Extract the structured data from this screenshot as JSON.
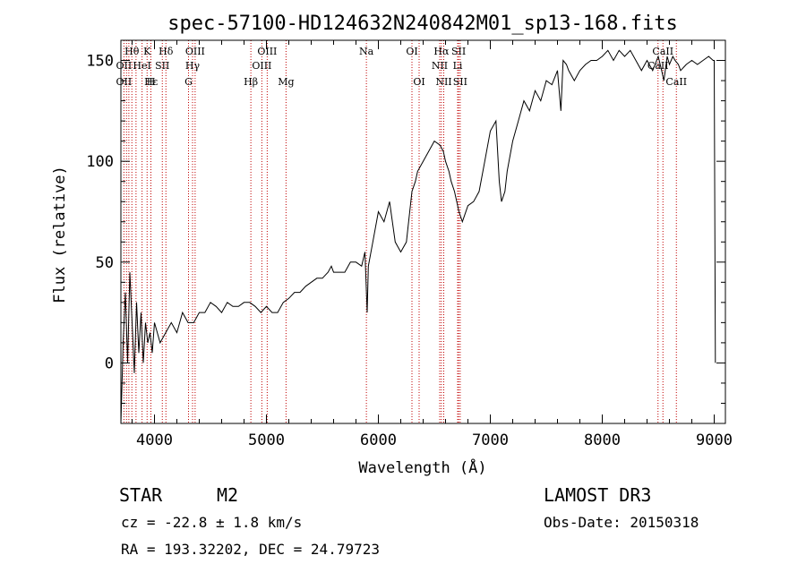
{
  "chart_data": {
    "type": "line",
    "title": "spec-57100-HD124632N240842M01_sp13-168.fits",
    "xlabel": "Wavelength (Å)",
    "ylabel": "Flux (relative)",
    "xlim": [
      3700,
      9100
    ],
    "ylim": [
      -30,
      160
    ],
    "xticks": [
      4000,
      5000,
      6000,
      7000,
      8000,
      9000
    ],
    "yticks": [
      0,
      50,
      100,
      150
    ],
    "series": [
      {
        "name": "flux",
        "x": [
          3700,
          3720,
          3740,
          3760,
          3780,
          3800,
          3820,
          3840,
          3860,
          3880,
          3900,
          3920,
          3940,
          3960,
          3980,
          4000,
          4050,
          4100,
          4150,
          4200,
          4250,
          4300,
          4350,
          4400,
          4450,
          4500,
          4550,
          4600,
          4650,
          4700,
          4750,
          4800,
          4850,
          4900,
          4950,
          5000,
          5050,
          5100,
          5150,
          5200,
          5250,
          5300,
          5350,
          5400,
          5450,
          5500,
          5550,
          5580,
          5600,
          5650,
          5700,
          5750,
          5800,
          5850,
          5880,
          5900,
          5910,
          5950,
          6000,
          6050,
          6100,
          6150,
          6200,
          6250,
          6280,
          6300,
          6330,
          6350,
          6400,
          6450,
          6500,
          6550,
          6580,
          6600,
          6630,
          6650,
          6680,
          6700,
          6720,
          6750,
          6800,
          6850,
          6900,
          6950,
          7000,
          7050,
          7080,
          7100,
          7130,
          7150,
          7200,
          7250,
          7300,
          7350,
          7400,
          7450,
          7500,
          7550,
          7600,
          7630,
          7650,
          7680,
          7700,
          7750,
          7800,
          7850,
          7900,
          7950,
          8000,
          8050,
          8100,
          8150,
          8200,
          8250,
          8300,
          8350,
          8400,
          8450,
          8500,
          8530,
          8550,
          8580,
          8600,
          8630,
          8650,
          8680,
          8700,
          8750,
          8800,
          8850,
          8900,
          8950,
          8990,
          9000,
          9010
        ],
        "y": [
          -30,
          10,
          35,
          0,
          45,
          20,
          -5,
          30,
          5,
          25,
          0,
          20,
          10,
          15,
          5,
          20,
          10,
          15,
          20,
          15,
          25,
          20,
          20,
          25,
          25,
          30,
          28,
          25,
          30,
          28,
          28,
          30,
          30,
          28,
          25,
          28,
          25,
          25,
          30,
          32,
          35,
          35,
          38,
          40,
          42,
          42,
          45,
          48,
          45,
          45,
          45,
          50,
          50,
          48,
          55,
          25,
          48,
          60,
          75,
          70,
          80,
          60,
          55,
          60,
          75,
          85,
          90,
          95,
          100,
          105,
          110,
          108,
          105,
          100,
          95,
          90,
          85,
          80,
          75,
          70,
          78,
          80,
          85,
          100,
          115,
          120,
          90,
          80,
          85,
          95,
          110,
          120,
          130,
          125,
          135,
          130,
          140,
          138,
          145,
          125,
          150,
          148,
          145,
          140,
          145,
          148,
          150,
          150,
          152,
          155,
          150,
          155,
          152,
          155,
          150,
          145,
          150,
          145,
          152,
          145,
          140,
          152,
          148,
          152,
          150,
          148,
          145,
          148,
          150,
          148,
          150,
          152,
          150,
          150,
          0
        ],
        "color": "#000000"
      }
    ],
    "lines": {
      "color": "#c00000",
      "upper": [
        {
          "label": "Hθ",
          "x": 3798
        },
        {
          "label": "K",
          "x": 3934
        },
        {
          "label": "Hδ",
          "x": 4102
        },
        {
          "label": "OIII",
          "x": 4363
        },
        {
          "label": "OIII",
          "x": 5007
        },
        {
          "label": "Na",
          "x": 5893
        },
        {
          "label": "OI",
          "x": 6300
        },
        {
          "label": "Hα",
          "x": 6563
        },
        {
          "label": "SII",
          "x": 6717
        },
        {
          "label": "CaII",
          "x": 8542
        }
      ],
      "middle": [
        {
          "label": "OII",
          "x": 3727
        },
        {
          "label": "HeI",
          "x": 3889
        },
        {
          "label": "SII",
          "x": 4070
        },
        {
          "label": "Hγ",
          "x": 4340
        },
        {
          "label": "OIII",
          "x": 4959
        },
        {
          "label": "NII",
          "x": 6548
        },
        {
          "label": "Li",
          "x": 6708
        },
        {
          "label": "CaII",
          "x": 8498
        }
      ],
      "lower": [
        {
          "label": "OII",
          "x": 3727
        },
        {
          "label": "Hε",
          "x": 3970
        },
        {
          "label": "H",
          "x": 3968
        },
        {
          "label": "G",
          "x": 4304
        },
        {
          "label": "Hβ",
          "x": 4861
        },
        {
          "label": "Mg",
          "x": 5175
        },
        {
          "label": "OI",
          "x": 6364
        },
        {
          "label": "NII",
          "x": 6584
        },
        {
          "label": "SII",
          "x": 6731
        },
        {
          "label": "CaII",
          "x": 8662
        }
      ]
    },
    "line_positions": [
      3727,
      3750,
      3771,
      3798,
      3835,
      3889,
      3934,
      3968,
      4070,
      4102,
      4304,
      4340,
      4363,
      4861,
      4959,
      5007,
      5175,
      5893,
      6300,
      6364,
      6548,
      6563,
      6584,
      6708,
      6717,
      6731,
      8498,
      8542,
      8662
    ]
  },
  "info": {
    "object_class": "STAR",
    "subclass": "M2",
    "survey": "LAMOST DR3",
    "cz": "cz = -22.8 ± 1.8 km/s",
    "obs_date": "Obs-Date: 20150318",
    "coords": "RA = 193.32202, DEC =  24.79723"
  }
}
